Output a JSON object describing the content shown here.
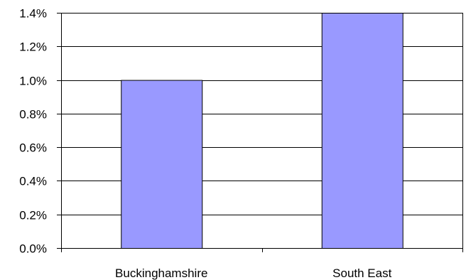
{
  "chart_data": {
    "type": "bar",
    "title": "",
    "xlabel": "",
    "ylabel": "",
    "categories": [
      "Buckinghamshire",
      "South East"
    ],
    "values": [
      1.0,
      1.4
    ],
    "value_unit": "%",
    "ylim": [
      0.0,
      1.4
    ],
    "ytick_step": 0.2,
    "ytick_labels": [
      "0.0%",
      "0.2%",
      "0.4%",
      "0.6%",
      "0.8%",
      "1.0%",
      "1.2%",
      "1.4%"
    ],
    "grid": true,
    "legend": "none",
    "colors": {
      "bar_fill": "#9999ff",
      "bar_stroke": "#000000",
      "grid": "#000000",
      "axis": "#000000"
    }
  }
}
